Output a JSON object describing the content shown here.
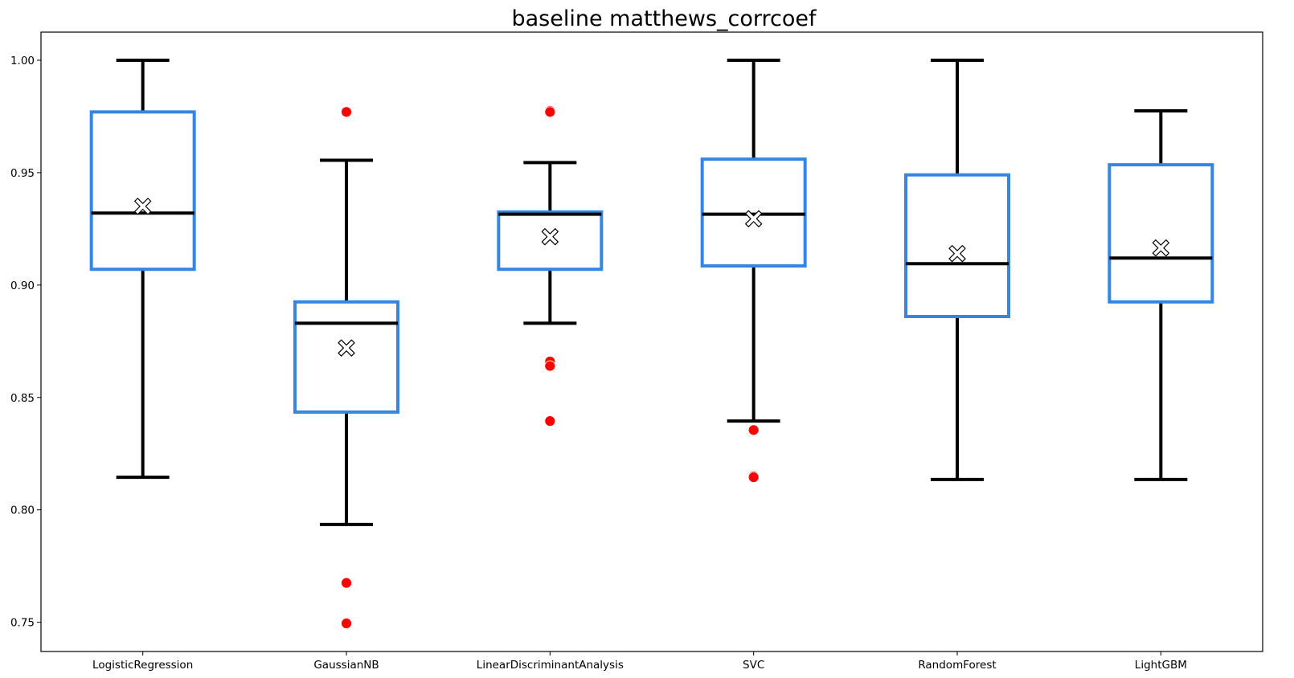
{
  "chart_data": {
    "type": "box",
    "title": "baseline matthews_corrcoef",
    "xlabel": "",
    "ylabel": "",
    "ylim": [
      0.737,
      1.0125
    ],
    "yticks": [
      0.75,
      0.8,
      0.85,
      0.9,
      0.95,
      1.0
    ],
    "ytick_labels": [
      "0.75",
      "0.80",
      "0.85",
      "0.90",
      "0.95",
      "1.00"
    ],
    "grid": false,
    "legend": "none",
    "colors": {
      "box": "#3585e2",
      "whisker": "#000000",
      "median": "#000000",
      "outlier": "#ff0000",
      "mean_marker_fill": "#ffffff",
      "mean_marker_edge": "#000000"
    },
    "categories": [
      "LogisticRegression",
      "GaussianNB",
      "LinearDiscriminantAnalysis",
      "SVC",
      "RandomForest",
      "LightGBM"
    ],
    "boxes": [
      {
        "category": "LogisticRegression",
        "whisker_low": 0.8145,
        "q1": 0.907,
        "median": 0.932,
        "q3": 0.977,
        "whisker_high": 1.0,
        "mean": 0.935,
        "outliers": []
      },
      {
        "category": "GaussianNB",
        "whisker_low": 0.7935,
        "q1": 0.8435,
        "median": 0.883,
        "q3": 0.8925,
        "whisker_high": 0.9555,
        "mean": 0.872,
        "outliers": [
          0.977,
          0.7675,
          0.7495
        ]
      },
      {
        "category": "LinearDiscriminantAnalysis",
        "whisker_low": 0.883,
        "q1": 0.907,
        "median": 0.9315,
        "q3": 0.9325,
        "whisker_high": 0.9545,
        "mean": 0.9215,
        "outliers": [
          0.9775,
          0.977,
          0.866,
          0.864,
          0.8395
        ]
      },
      {
        "category": "SVC",
        "whisker_low": 0.8395,
        "q1": 0.9085,
        "median": 0.9315,
        "q3": 0.956,
        "whisker_high": 1.0,
        "mean": 0.9295,
        "outliers": [
          0.8355,
          0.815,
          0.8145
        ]
      },
      {
        "category": "RandomForest",
        "whisker_low": 0.8135,
        "q1": 0.886,
        "median": 0.9095,
        "q3": 0.949,
        "whisker_high": 1.0,
        "mean": 0.914,
        "outliers": []
      },
      {
        "category": "LightGBM",
        "whisker_low": 0.8135,
        "q1": 0.8925,
        "median": 0.912,
        "q3": 0.9535,
        "whisker_high": 0.9775,
        "mean": 0.9165,
        "outliers": []
      }
    ]
  }
}
